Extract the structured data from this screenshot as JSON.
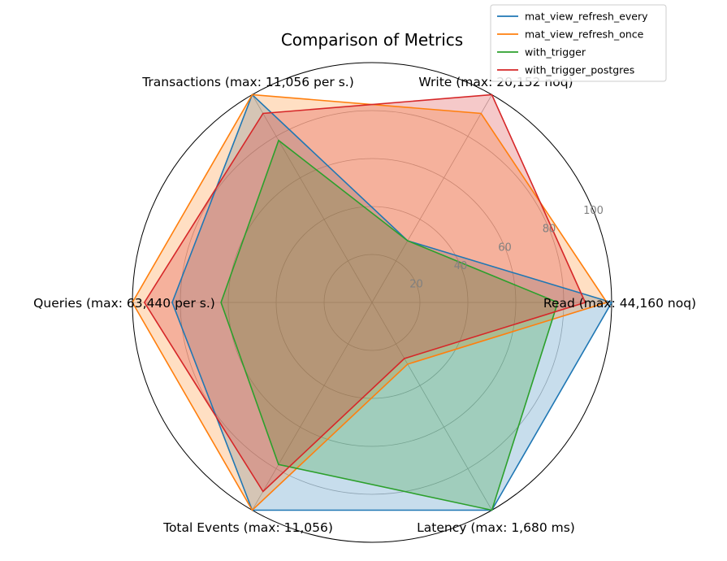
{
  "chart_data": {
    "type": "radar",
    "title": "Comparison of Metrics",
    "axes": [
      "Read (max: 44,160 noq)",
      "Write (max: 20,152 noq)",
      "Transactions (max: 11,056 per s.)",
      "Queries (max: 63,440 per s.)",
      "Total Events (max: 11,056)",
      "Latency (max: 1,680 ms)"
    ],
    "radial_ticks": [
      "20",
      "40",
      "60",
      "80",
      "100"
    ],
    "radial_tick_values": [
      20,
      40,
      60,
      80,
      100
    ],
    "rlim": [
      0,
      100
    ],
    "grid": true,
    "legend_position": "top-right",
    "series": [
      {
        "name": "mat_view_refresh_every",
        "color": "#1f77b4",
        "values": [
          100,
          29.7,
          100,
          83.4,
          100,
          100
        ]
      },
      {
        "name": "mat_view_refresh_once",
        "color": "#ff7f0e",
        "values": [
          98,
          91,
          100,
          100,
          100,
          29.7
        ]
      },
      {
        "name": "with_trigger",
        "color": "#2ca02c",
        "values": [
          77.5,
          29.7,
          78,
          63,
          78,
          100
        ]
      },
      {
        "name": "with_trigger_postgres",
        "color": "#d62728",
        "values": [
          89,
          100,
          91,
          95,
          91,
          27
        ]
      }
    ]
  }
}
